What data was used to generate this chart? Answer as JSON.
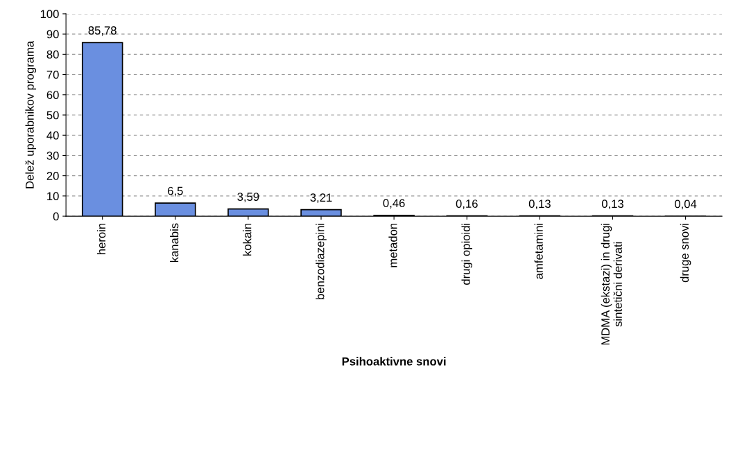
{
  "chart_data": {
    "type": "bar",
    "xlabel": "Psihoaktivne snovi",
    "ylabel": "Delež uporabnikov programa",
    "categories": [
      "heroin",
      "kanabis",
      "kokain",
      "benzodiazepini",
      "metadon",
      "drugi opioidi",
      "amfetamini",
      "MDMA (ekstazi) in drugi sintetični derivati",
      "druge snovi"
    ],
    "values": [
      85.78,
      6.5,
      3.59,
      3.21,
      0.46,
      0.16,
      0.13,
      0.13,
      0.04
    ],
    "value_labels": [
      "85,78",
      "6,5",
      "3,59",
      "3,21",
      "0,46",
      "0,16",
      "0,13",
      "0,13",
      "0,04"
    ],
    "color": "#6a8fe0",
    "ylim": [
      0,
      100
    ],
    "yticks": [
      0,
      10,
      20,
      30,
      40,
      50,
      60,
      70,
      80,
      90,
      100
    ],
    "grid": "y",
    "legend": false
  }
}
